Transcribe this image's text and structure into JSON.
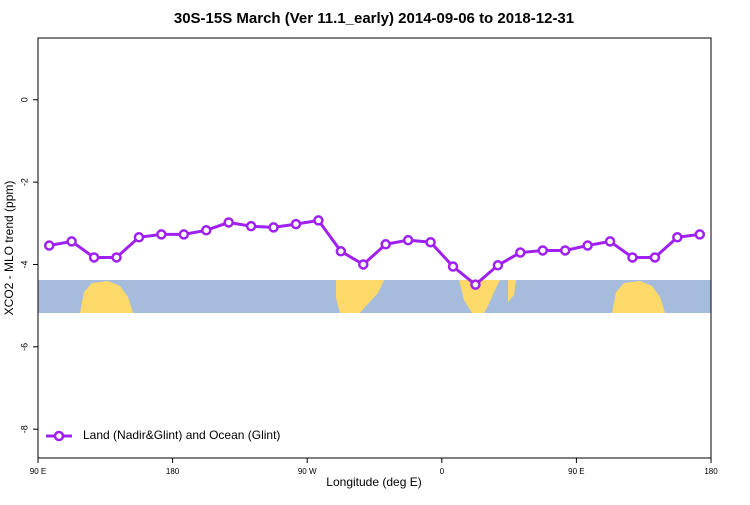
{
  "chart_data": {
    "type": "line",
    "title": "30S-15S March (Ver 11.1_early)   2014-09-06 to 2018-12-31",
    "x_label": "Longitude (deg E)",
    "y_label": "XCO2 - MLO trend (ppm)",
    "x": [
      97.5,
      112.5,
      127.5,
      142.5,
      157.5,
      172.5,
      187.5,
      202.5,
      217.5,
      232.5,
      247.5,
      262.5,
      277.5,
      292.5,
      307.5,
      322.5,
      337.5,
      352.5,
      367.5,
      382.5,
      397.5,
      412.5,
      427.5,
      442.5,
      457.5,
      472.5,
      487.5,
      502.5,
      517.5,
      532.5
    ],
    "series": [
      {
        "name": "Land (Nadir&Glint) and Ocean (Glint)",
        "color": "#a020f0",
        "values": [
          -3.54,
          -3.44,
          -3.83,
          -3.83,
          -3.34,
          -3.27,
          -3.27,
          -3.17,
          -2.98,
          -3.07,
          -3.1,
          -3.02,
          -2.93,
          -3.68,
          -4.0,
          -3.51,
          -3.41,
          -3.46,
          -4.05,
          -4.49,
          -4.02,
          -3.71,
          -3.66,
          -3.66,
          -3.54,
          -3.44,
          -3.83,
          -3.83,
          -3.34,
          -3.27
        ]
      }
    ],
    "xlim": [
      90,
      540
    ],
    "xticks": [
      {
        "value": 90,
        "label": "90 E"
      },
      180,
      {
        "value": 270,
        "label": "90 W"
      },
      {
        "value": 360,
        "label": "0"
      },
      {
        "value": 450,
        "label": "90 E"
      },
      {
        "value": 540,
        "label": "180"
      }
    ],
    "ylim": [
      -8.7,
      1.5
    ],
    "yticks": [
      0,
      -2,
      -4,
      -6,
      -8
    ],
    "legend": "bottom-left"
  }
}
